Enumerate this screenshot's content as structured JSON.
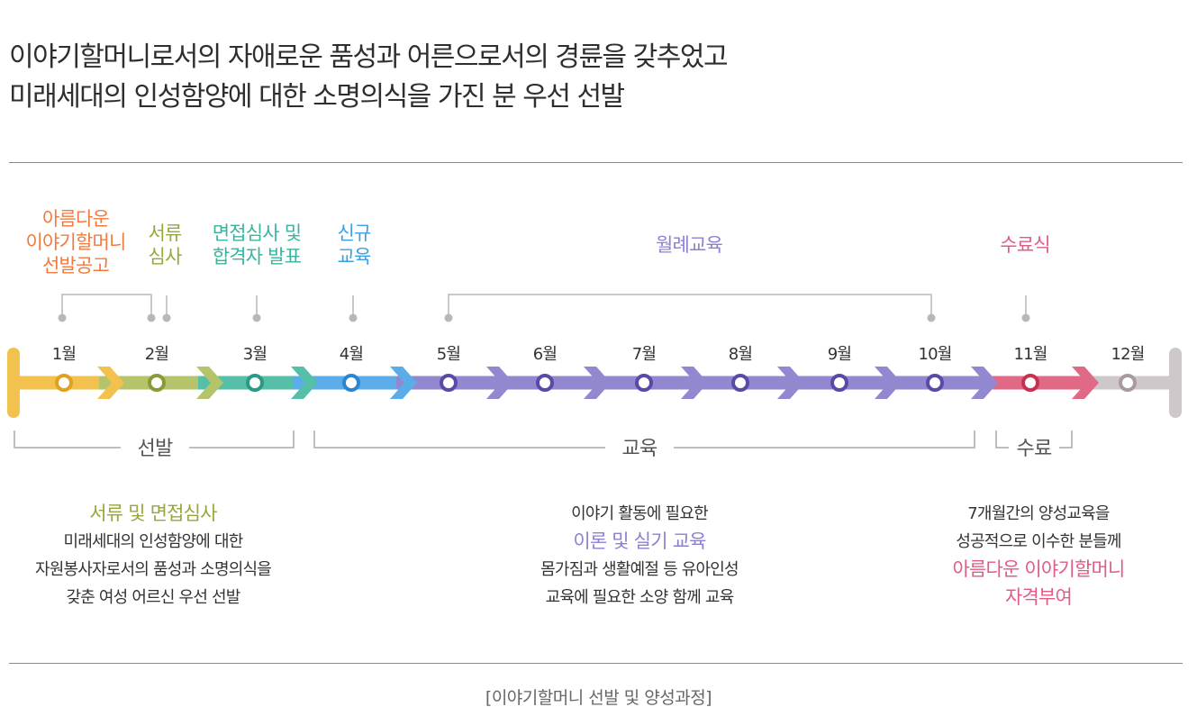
{
  "intro": {
    "line1": "이야기할머니로서의 자애로운 품성과 어른으로서의 경륜을 갖추었고",
    "line2": "미래세대의 인성함양에 대한 소명의식을 가진 분 우선 선발"
  },
  "stages": [
    {
      "id": "announce",
      "lines": [
        "아름다운",
        "이야기할머니",
        "선발공고"
      ],
      "color": "#f27a3f"
    },
    {
      "id": "doc-review",
      "lines": [
        "서류",
        "심사"
      ],
      "color": "#9aa63c"
    },
    {
      "id": "interview",
      "lines": [
        "면접심사 및",
        "합격자 발표"
      ],
      "color": "#3bb3a0"
    },
    {
      "id": "new-edu",
      "lines": [
        "신규",
        "교육"
      ],
      "color": "#3ba1e0"
    },
    {
      "id": "monthly-edu",
      "lines": [
        "월례교육"
      ],
      "color": "#8f7fd0"
    },
    {
      "id": "graduation",
      "lines": [
        "수료식"
      ],
      "color": "#e05c84"
    }
  ],
  "months": [
    "1월",
    "2월",
    "3월",
    "4월",
    "5월",
    "6월",
    "7월",
    "8월",
    "9월",
    "10월",
    "11월",
    "12월"
  ],
  "phases": [
    {
      "id": "selection",
      "label": "선발"
    },
    {
      "id": "education",
      "label": "교육"
    },
    {
      "id": "completion",
      "label": "수료"
    }
  ],
  "colors": {
    "jan": "#f2c14e",
    "feb": "#b5c46a",
    "mar": "#55bfa8",
    "apr": "#5aade8",
    "edu": "#9188cf",
    "nov": "#e06a86",
    "dec": "#cfc8cb",
    "jan_dot": "#e0a020",
    "feb_dot": "#8c9a35",
    "mar_dot": "#2a9a86",
    "apr_dot": "#2a86d0",
    "edu_dot": "#5a4aa8",
    "nov_dot": "#c83050",
    "dec_dot": "#a89aa0"
  },
  "desc": {
    "selection": {
      "title": "서류 및 면접심사",
      "lines": [
        "미래세대의 인성함양에 대한",
        "자원봉사자로서의 품성과 소명의식을",
        "갖춘 여성 어르신 우선 선발"
      ]
    },
    "education": {
      "pre": "이야기 활동에 필요한",
      "title": "이론 및 실기 교육",
      "lines": [
        "몸가짐과 생활예절 등 유아인성",
        "교육에 필요한 소양 함께 교육"
      ]
    },
    "completion": {
      "lines": [
        "7개월간의 양성교육을",
        "성공적으로 이수한 분들께"
      ],
      "title1": "아름다운 이야기할머니",
      "title2": "자격부여"
    }
  },
  "caption": "[이야기할머니 선발 및 양성과정]"
}
